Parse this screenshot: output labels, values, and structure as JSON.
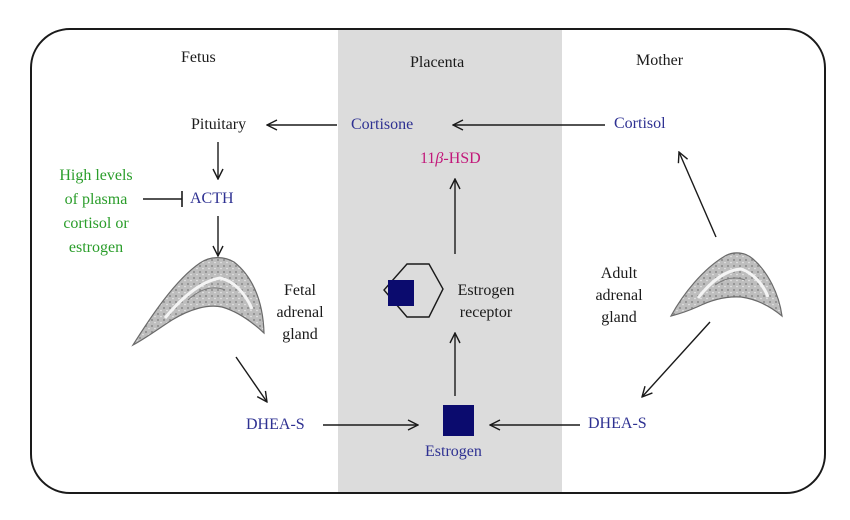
{
  "colors": {
    "text": "#1a1a1a",
    "hormone": "#2e3192",
    "inhibitor": "#2a9d2a",
    "enzyme": "#c2187a",
    "placenta_band": "#dcdcdc",
    "square": "#0b0b6e"
  },
  "columns": {
    "fetus": "Fetus",
    "placenta": "Placenta",
    "mother": "Mother"
  },
  "nodes": {
    "pituitary": "Pituitary",
    "cortisone": "Cortisone",
    "cortisol": "Cortisol",
    "hsd_prefix": "11",
    "hsd_beta": "β",
    "hsd_suffix": "-HSD",
    "acth": "ACTH",
    "high_levels": [
      "High levels",
      "of plasma",
      "cortisol or",
      "estrogen"
    ],
    "fetal_gland": [
      "Fetal",
      "adrenal",
      "gland"
    ],
    "adult_gland": [
      "Adult",
      "adrenal",
      "gland"
    ],
    "estrogen_receptor": [
      "Estrogen",
      "receptor"
    ],
    "dhea_fetal": "DHEA-S",
    "dhea_maternal": "DHEA-S",
    "estrogen": "Estrogen"
  },
  "icons": [
    "fetal-adrenal-gland-icon",
    "adult-adrenal-gland-icon",
    "estrogen-receptor-hexagon-icon",
    "estrogen-square-icon"
  ]
}
